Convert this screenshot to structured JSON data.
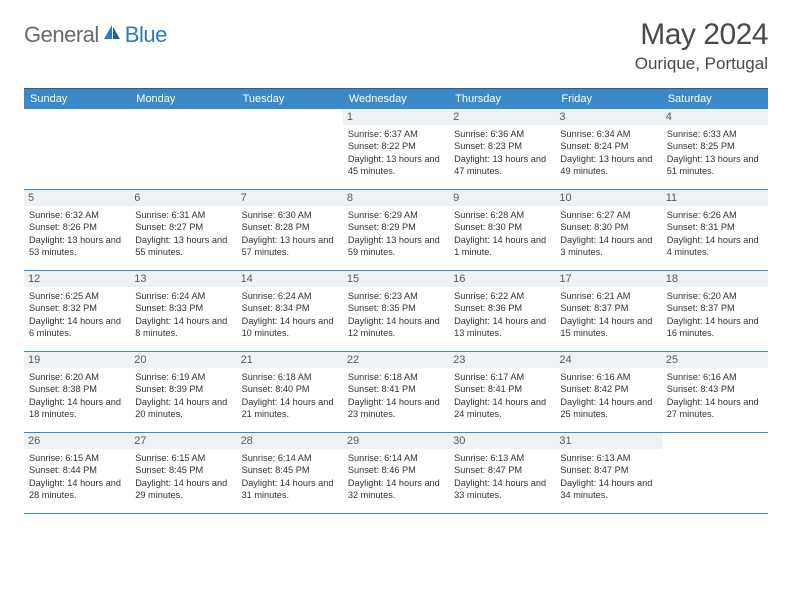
{
  "brand": {
    "part1": "General",
    "part2": "Blue"
  },
  "title": "May 2024",
  "location": "Ourique, Portugal",
  "colors": {
    "header_bg": "#3a89c9",
    "daynum_bg": "#eef2f5",
    "text_muted": "#5a5a5a",
    "border": "#3a89c9",
    "brand_gray": "#6a6a6a",
    "brand_blue": "#2a7bbf"
  },
  "weekdays": [
    "Sunday",
    "Monday",
    "Tuesday",
    "Wednesday",
    "Thursday",
    "Friday",
    "Saturday"
  ],
  "weeks": [
    [
      null,
      null,
      null,
      {
        "n": "1",
        "sunrise": "6:37 AM",
        "sunset": "8:22 PM",
        "daylight": "13 hours and 45 minutes."
      },
      {
        "n": "2",
        "sunrise": "6:36 AM",
        "sunset": "8:23 PM",
        "daylight": "13 hours and 47 minutes."
      },
      {
        "n": "3",
        "sunrise": "6:34 AM",
        "sunset": "8:24 PM",
        "daylight": "13 hours and 49 minutes."
      },
      {
        "n": "4",
        "sunrise": "6:33 AM",
        "sunset": "8:25 PM",
        "daylight": "13 hours and 51 minutes."
      }
    ],
    [
      {
        "n": "5",
        "sunrise": "6:32 AM",
        "sunset": "8:26 PM",
        "daylight": "13 hours and 53 minutes."
      },
      {
        "n": "6",
        "sunrise": "6:31 AM",
        "sunset": "8:27 PM",
        "daylight": "13 hours and 55 minutes."
      },
      {
        "n": "7",
        "sunrise": "6:30 AM",
        "sunset": "8:28 PM",
        "daylight": "13 hours and 57 minutes."
      },
      {
        "n": "8",
        "sunrise": "6:29 AM",
        "sunset": "8:29 PM",
        "daylight": "13 hours and 59 minutes."
      },
      {
        "n": "9",
        "sunrise": "6:28 AM",
        "sunset": "8:30 PM",
        "daylight": "14 hours and 1 minute."
      },
      {
        "n": "10",
        "sunrise": "6:27 AM",
        "sunset": "8:30 PM",
        "daylight": "14 hours and 3 minutes."
      },
      {
        "n": "11",
        "sunrise": "6:26 AM",
        "sunset": "8:31 PM",
        "daylight": "14 hours and 4 minutes."
      }
    ],
    [
      {
        "n": "12",
        "sunrise": "6:25 AM",
        "sunset": "8:32 PM",
        "daylight": "14 hours and 6 minutes."
      },
      {
        "n": "13",
        "sunrise": "6:24 AM",
        "sunset": "8:33 PM",
        "daylight": "14 hours and 8 minutes."
      },
      {
        "n": "14",
        "sunrise": "6:24 AM",
        "sunset": "8:34 PM",
        "daylight": "14 hours and 10 minutes."
      },
      {
        "n": "15",
        "sunrise": "6:23 AM",
        "sunset": "8:35 PM",
        "daylight": "14 hours and 12 minutes."
      },
      {
        "n": "16",
        "sunrise": "6:22 AM",
        "sunset": "8:36 PM",
        "daylight": "14 hours and 13 minutes."
      },
      {
        "n": "17",
        "sunrise": "6:21 AM",
        "sunset": "8:37 PM",
        "daylight": "14 hours and 15 minutes."
      },
      {
        "n": "18",
        "sunrise": "6:20 AM",
        "sunset": "8:37 PM",
        "daylight": "14 hours and 16 minutes."
      }
    ],
    [
      {
        "n": "19",
        "sunrise": "6:20 AM",
        "sunset": "8:38 PM",
        "daylight": "14 hours and 18 minutes."
      },
      {
        "n": "20",
        "sunrise": "6:19 AM",
        "sunset": "8:39 PM",
        "daylight": "14 hours and 20 minutes."
      },
      {
        "n": "21",
        "sunrise": "6:18 AM",
        "sunset": "8:40 PM",
        "daylight": "14 hours and 21 minutes."
      },
      {
        "n": "22",
        "sunrise": "6:18 AM",
        "sunset": "8:41 PM",
        "daylight": "14 hours and 23 minutes."
      },
      {
        "n": "23",
        "sunrise": "6:17 AM",
        "sunset": "8:41 PM",
        "daylight": "14 hours and 24 minutes."
      },
      {
        "n": "24",
        "sunrise": "6:16 AM",
        "sunset": "8:42 PM",
        "daylight": "14 hours and 25 minutes."
      },
      {
        "n": "25",
        "sunrise": "6:16 AM",
        "sunset": "8:43 PM",
        "daylight": "14 hours and 27 minutes."
      }
    ],
    [
      {
        "n": "26",
        "sunrise": "6:15 AM",
        "sunset": "8:44 PM",
        "daylight": "14 hours and 28 minutes."
      },
      {
        "n": "27",
        "sunrise": "6:15 AM",
        "sunset": "8:45 PM",
        "daylight": "14 hours and 29 minutes."
      },
      {
        "n": "28",
        "sunrise": "6:14 AM",
        "sunset": "8:45 PM",
        "daylight": "14 hours and 31 minutes."
      },
      {
        "n": "29",
        "sunrise": "6:14 AM",
        "sunset": "8:46 PM",
        "daylight": "14 hours and 32 minutes."
      },
      {
        "n": "30",
        "sunrise": "6:13 AM",
        "sunset": "8:47 PM",
        "daylight": "14 hours and 33 minutes."
      },
      {
        "n": "31",
        "sunrise": "6:13 AM",
        "sunset": "8:47 PM",
        "daylight": "14 hours and 34 minutes."
      },
      null
    ]
  ],
  "labels": {
    "sunrise": "Sunrise:",
    "sunset": "Sunset:",
    "daylight": "Daylight:"
  }
}
